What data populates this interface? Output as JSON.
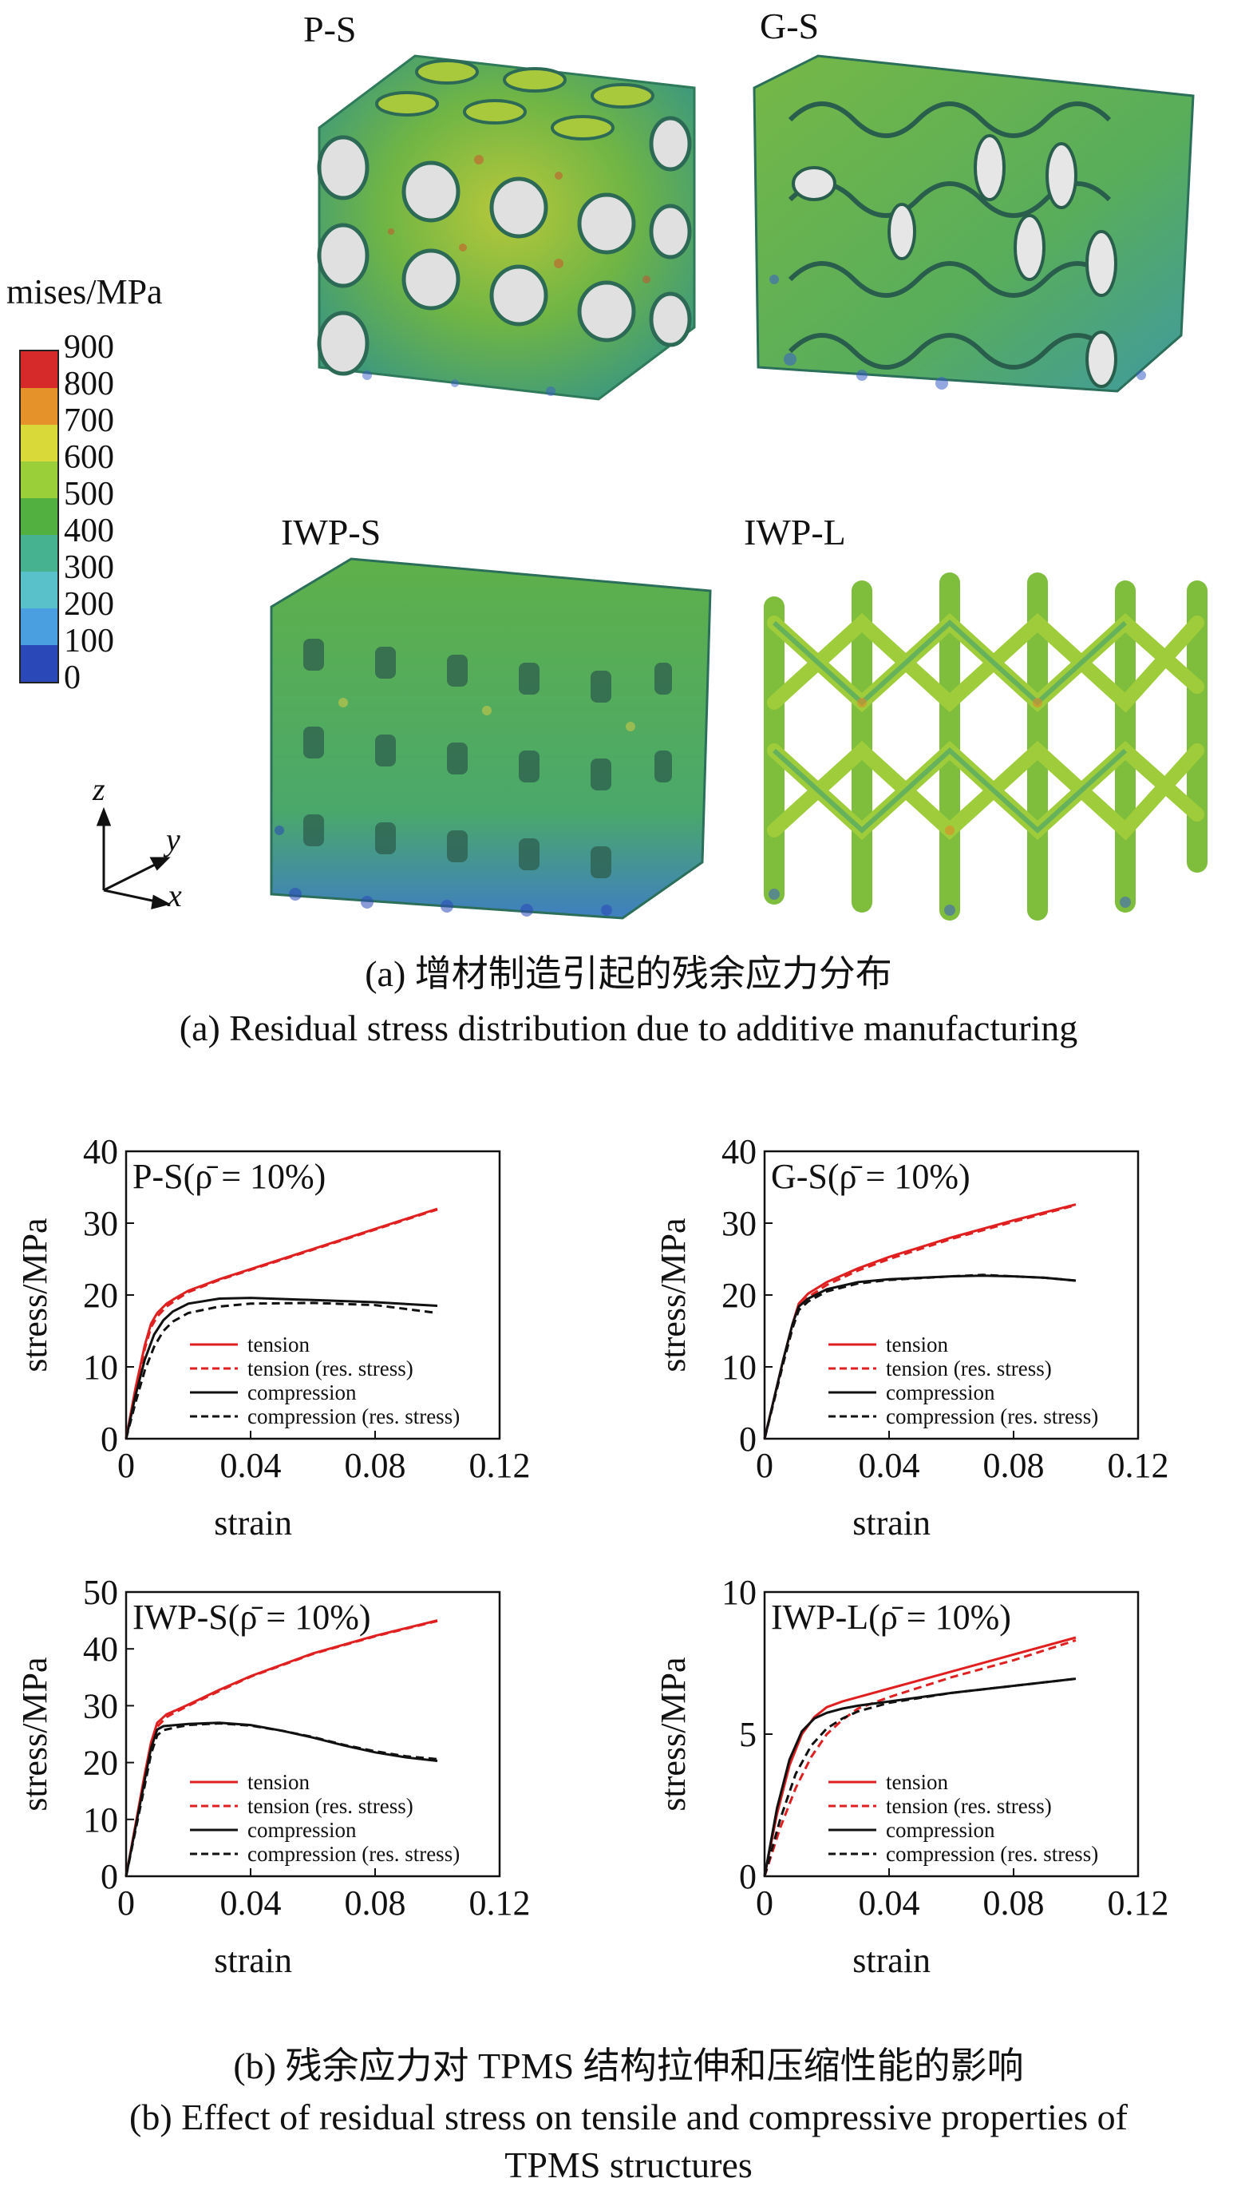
{
  "panel_a": {
    "labels": {
      "ps": "P-S",
      "gs": "G-S",
      "iwps": "IWP-S",
      "iwpl": "IWP-L"
    },
    "colorbar": {
      "title": "mises/MPa",
      "ticks": [
        "900",
        "800",
        "700",
        "600",
        "500",
        "400",
        "300",
        "200",
        "100",
        "0"
      ],
      "colors": [
        "#d62a2a",
        "#e6922a",
        "#d9d93a",
        "#9bcf3a",
        "#52b041",
        "#47b28f",
        "#59c1c9",
        "#4a9fe0",
        "#2a48b8"
      ]
    },
    "axes": {
      "z": "z",
      "y": "y",
      "x": "x"
    },
    "caption_cn": "(a) 增材制造引起的残余应力分布",
    "caption_en": "(a) Residual stress distribution due to additive manufacturing"
  },
  "panel_b": {
    "caption_cn": "(b) 残余应力对 TPMS 结构拉伸和压缩性能的影响",
    "caption_en_1": "(b) Effect of residual stress on tensile and compressive properties of",
    "caption_en_2": "TPMS structures"
  },
  "legend": {
    "tension": "tension",
    "tension_res": "tension (res. stress)",
    "compression": "compression",
    "compression_res": "compression (res. stress)",
    "red": "#e02020",
    "black": "#111111"
  },
  "chart_data": [
    {
      "type": "line",
      "title": "P-S(ρ̄ = 10%)",
      "xlabel": "strain",
      "ylabel": "stress/MPa",
      "xlim": [
        0,
        0.12
      ],
      "ylim": [
        0,
        40
      ],
      "xticks": [
        "0",
        "0.04",
        "0.08",
        "0.12"
      ],
      "yticks": [
        "0",
        "10",
        "20",
        "30",
        "40"
      ],
      "series": [
        {
          "name": "tension",
          "color": "#e02020",
          "dash": false,
          "x": [
            0,
            0.003,
            0.006,
            0.008,
            0.01,
            0.013,
            0.016,
            0.02,
            0.03,
            0.04,
            0.06,
            0.08,
            0.1
          ],
          "y": [
            0,
            7,
            13,
            16,
            17.5,
            18.8,
            19.6,
            20.6,
            22.2,
            23.6,
            26.4,
            29.2,
            32
          ]
        },
        {
          "name": "tension (res. stress)",
          "color": "#e02020",
          "dash": true,
          "x": [
            0,
            0.003,
            0.006,
            0.008,
            0.01,
            0.013,
            0.016,
            0.02,
            0.03,
            0.04,
            0.06,
            0.08,
            0.1
          ],
          "y": [
            0,
            6.5,
            12.5,
            15.5,
            17,
            18.4,
            19.3,
            20.4,
            22.1,
            23.5,
            26.3,
            29.1,
            31.9
          ]
        },
        {
          "name": "compression",
          "color": "#111111",
          "dash": false,
          "x": [
            0,
            0.003,
            0.006,
            0.009,
            0.012,
            0.015,
            0.02,
            0.03,
            0.04,
            0.06,
            0.08,
            0.1
          ],
          "y": [
            0,
            6,
            11,
            14.5,
            16.5,
            17.7,
            18.8,
            19.5,
            19.6,
            19.3,
            19,
            18.5
          ]
        },
        {
          "name": "compression (res. stress)",
          "color": "#111111",
          "dash": true,
          "x": [
            0,
            0.003,
            0.006,
            0.009,
            0.012,
            0.015,
            0.02,
            0.03,
            0.04,
            0.06,
            0.08,
            0.1
          ],
          "y": [
            0,
            5,
            9.5,
            12.8,
            15,
            16.3,
            17.5,
            18.4,
            18.8,
            18.9,
            18.6,
            17.5
          ]
        }
      ]
    },
    {
      "type": "line",
      "title": "G-S(ρ̄ = 10%)",
      "xlabel": "strain",
      "ylabel": "stress/MPa",
      "xlim": [
        0,
        0.12
      ],
      "ylim": [
        0,
        40
      ],
      "xticks": [
        "0",
        "0.04",
        "0.08",
        "0.12"
      ],
      "yticks": [
        "0",
        "10",
        "20",
        "30",
        "40"
      ],
      "series": [
        {
          "name": "tension",
          "color": "#e02020",
          "dash": false,
          "x": [
            0,
            0.003,
            0.006,
            0.009,
            0.011,
            0.014,
            0.02,
            0.03,
            0.04,
            0.06,
            0.08,
            0.1
          ],
          "y": [
            0,
            5.5,
            11,
            16,
            18.8,
            20.2,
            21.8,
            23.7,
            25.3,
            28,
            30.4,
            32.6
          ]
        },
        {
          "name": "tension (res. stress)",
          "color": "#e02020",
          "dash": true,
          "x": [
            0,
            0.003,
            0.006,
            0.009,
            0.011,
            0.014,
            0.02,
            0.03,
            0.04,
            0.06,
            0.08,
            0.1
          ],
          "y": [
            0,
            5.3,
            10.6,
            15.5,
            18.3,
            19.7,
            21.4,
            23.4,
            25,
            27.8,
            30.2,
            32.5
          ]
        },
        {
          "name": "compression",
          "color": "#111111",
          "dash": false,
          "x": [
            0,
            0.003,
            0.006,
            0.009,
            0.011,
            0.014,
            0.02,
            0.03,
            0.04,
            0.06,
            0.07,
            0.08,
            0.09,
            0.1
          ],
          "y": [
            0,
            5.5,
            11,
            16,
            18.4,
            19.5,
            20.8,
            21.8,
            22.2,
            22.6,
            22.7,
            22.6,
            22.4,
            22
          ]
        },
        {
          "name": "compression (res. stress)",
          "color": "#111111",
          "dash": true,
          "x": [
            0,
            0.003,
            0.006,
            0.009,
            0.011,
            0.014,
            0.02,
            0.03,
            0.04,
            0.06,
            0.07,
            0.08,
            0.09,
            0.1
          ],
          "y": [
            0,
            5.2,
            10.5,
            15.4,
            17.9,
            19.1,
            20.5,
            21.6,
            22.1,
            22.6,
            22.8,
            22.6,
            22.4,
            22
          ]
        }
      ]
    },
    {
      "type": "line",
      "title": "IWP-S(ρ̄ = 10%)",
      "xlabel": "strain",
      "ylabel": "stress/MPa",
      "xlim": [
        0,
        0.12
      ],
      "ylim": [
        0,
        50
      ],
      "xticks": [
        "0",
        "0.04",
        "0.08",
        "0.12"
      ],
      "yticks": [
        "0",
        "10",
        "20",
        "30",
        "40",
        "50"
      ],
      "series": [
        {
          "name": "tension",
          "color": "#e02020",
          "dash": false,
          "x": [
            0,
            0.003,
            0.006,
            0.008,
            0.01,
            0.013,
            0.016,
            0.02,
            0.03,
            0.04,
            0.06,
            0.08,
            0.1
          ],
          "y": [
            0,
            9,
            18,
            23.5,
            27,
            28.5,
            29.2,
            30.2,
            32.8,
            35.2,
            39.2,
            42.3,
            45
          ]
        },
        {
          "name": "tension (res. stress)",
          "color": "#e02020",
          "dash": true,
          "x": [
            0,
            0.003,
            0.006,
            0.008,
            0.01,
            0.013,
            0.016,
            0.02,
            0.03,
            0.04,
            0.06,
            0.08,
            0.1
          ],
          "y": [
            0,
            8.5,
            17,
            22.5,
            26.3,
            28,
            28.9,
            30,
            32.6,
            35.1,
            39.1,
            42.2,
            44.9
          ]
        },
        {
          "name": "compression",
          "color": "#111111",
          "dash": false,
          "x": [
            0,
            0.003,
            0.006,
            0.008,
            0.01,
            0.012,
            0.016,
            0.02,
            0.03,
            0.04,
            0.05,
            0.06,
            0.07,
            0.08,
            0.09,
            0.1
          ],
          "y": [
            0,
            8.5,
            17,
            22.5,
            25.8,
            26.4,
            26.6,
            26.8,
            27,
            26.6,
            25.6,
            24.4,
            23,
            21.8,
            20.9,
            20.3
          ]
        },
        {
          "name": "compression (res. stress)",
          "color": "#111111",
          "dash": true,
          "x": [
            0,
            0.003,
            0.006,
            0.008,
            0.01,
            0.012,
            0.016,
            0.02,
            0.03,
            0.04,
            0.05,
            0.06,
            0.07,
            0.08,
            0.09,
            0.1
          ],
          "y": [
            0,
            8,
            16,
            21.5,
            24.8,
            25.7,
            26.2,
            26.6,
            26.9,
            26.5,
            25.6,
            24.5,
            23.1,
            22,
            21.1,
            20.6
          ]
        }
      ]
    },
    {
      "type": "line",
      "title": "IWP-L(ρ̄ = 10%)",
      "xlabel": "strain",
      "ylabel": "stress/MPa",
      "xlim": [
        0,
        0.12
      ],
      "ylim": [
        0,
        10
      ],
      "xticks": [
        "0",
        "0.04",
        "0.08",
        "0.12"
      ],
      "yticks": [
        "0",
        "5",
        "10"
      ],
      "series": [
        {
          "name": "tension",
          "color": "#e02020",
          "dash": false,
          "x": [
            0,
            0.004,
            0.008,
            0.012,
            0.016,
            0.02,
            0.025,
            0.03,
            0.04,
            0.06,
            0.08,
            0.1
          ],
          "y": [
            0,
            2.2,
            3.9,
            5,
            5.6,
            5.95,
            6.15,
            6.3,
            6.6,
            7.2,
            7.8,
            8.4
          ]
        },
        {
          "name": "tension (res. stress)",
          "color": "#e02020",
          "dash": true,
          "x": [
            0,
            0.005,
            0.01,
            0.015,
            0.02,
            0.025,
            0.03,
            0.035,
            0.04,
            0.06,
            0.08,
            0.1
          ],
          "y": [
            0,
            1.7,
            3.1,
            4.2,
            5,
            5.5,
            5.9,
            6.1,
            6.3,
            7,
            7.6,
            8.3
          ]
        },
        {
          "name": "compression",
          "color": "#111111",
          "dash": false,
          "x": [
            0,
            0.004,
            0.008,
            0.012,
            0.016,
            0.02,
            0.025,
            0.03,
            0.04,
            0.06,
            0.08,
            0.1
          ],
          "y": [
            0,
            2.4,
            4.1,
            5.1,
            5.55,
            5.75,
            5.9,
            6,
            6.15,
            6.45,
            6.7,
            6.95
          ]
        },
        {
          "name": "compression (res. stress)",
          "color": "#111111",
          "dash": true,
          "x": [
            0,
            0.005,
            0.01,
            0.015,
            0.02,
            0.025,
            0.03,
            0.04,
            0.06,
            0.08,
            0.1
          ],
          "y": [
            0,
            2,
            3.6,
            4.6,
            5.2,
            5.55,
            5.8,
            6.1,
            6.45,
            6.7,
            6.95
          ]
        }
      ]
    }
  ]
}
